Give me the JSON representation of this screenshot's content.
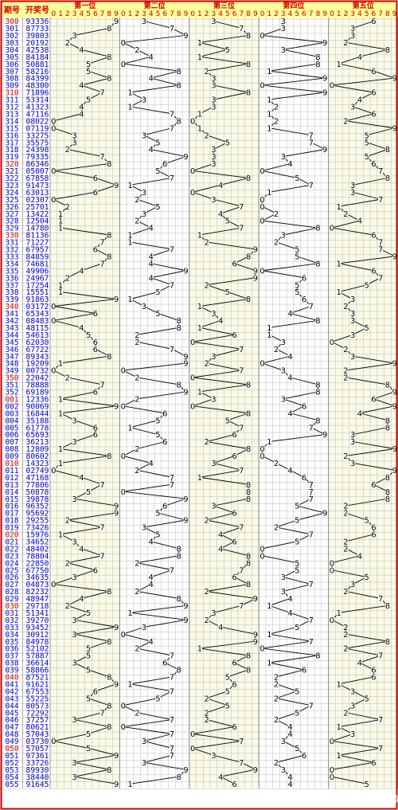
{
  "header": {
    "period_label": "期号",
    "draw_label": "开奖号"
  },
  "positions": [
    "第一位",
    "第二位",
    "第三位",
    "第四位",
    "第五位"
  ],
  "digits": [
    "0",
    "1",
    "2",
    "3",
    "4",
    "5",
    "6",
    "7",
    "8",
    "9"
  ],
  "watermark": "搜狐号@多歌",
  "colors": {
    "border": "#cc0000",
    "header_bg": "#ffff99",
    "period_red": "#cc0000",
    "period_blue": "#0000cc",
    "draw_blue": "#0000cc",
    "grid": "#bbbbbb",
    "zone_alt": "#fafae6",
    "line": "#000000"
  },
  "chart_data": {
    "type": "line",
    "title": "",
    "periods": [
      "300",
      "301",
      "302",
      "303",
      "304",
      "305",
      "306",
      "307",
      "308",
      "309",
      "310",
      "311",
      "312",
      "313",
      "314",
      "315",
      "316",
      "317",
      "318",
      "319",
      "320",
      "321",
      "322",
      "323",
      "324",
      "325",
      "326",
      "327",
      "328",
      "329",
      "330",
      "331",
      "332",
      "333",
      "334",
      "335",
      "336",
      "337",
      "338",
      "339",
      "340",
      "341",
      "342",
      "343",
      "344",
      "345",
      "346",
      "347",
      "348",
      "349",
      "350",
      "351",
      "352",
      "001",
      "002",
      "003",
      "004",
      "005",
      "006",
      "007",
      "008",
      "009",
      "010",
      "011",
      "012",
      "013",
      "014",
      "015",
      "016",
      "017",
      "018",
      "019",
      "020",
      "021",
      "022",
      "023",
      "024",
      "025",
      "026",
      "027",
      "028",
      "029",
      "030",
      "031",
      "032",
      "033",
      "034",
      "035",
      "036",
      "037",
      "038",
      "039",
      "040",
      "041",
      "042",
      "043",
      "044",
      "045",
      "046",
      "047",
      "048",
      "049",
      "050",
      "051",
      "052",
      "053",
      "054",
      "055"
    ],
    "red_periods": [
      "300",
      "310",
      "320",
      "330",
      "340",
      "350",
      "001",
      "010",
      "020",
      "030",
      "040",
      "050"
    ],
    "draws": [
      "93336",
      "87733",
      "39803",
      "20192",
      "42538",
      "84184",
      "50881",
      "58216",
      "84399",
      "48300",
      "71896",
      "53314",
      "41323",
      "47116",
      "08022",
      "07119",
      "33275",
      "35575",
      "24398",
      "79335",
      "86346",
      "05007",
      "67858",
      "91473",
      "63013",
      "02307",
      "25701",
      "13422",
      "12504",
      "14780",
      "81136",
      "71227",
      "67957",
      "84859",
      "74681",
      "49906",
      "24967",
      "17254",
      "15551",
      "91863",
      "03172",
      "65343",
      "08483",
      "48115",
      "54613",
      "62030",
      "67722",
      "89343",
      "19209",
      "00732",
      "22042",
      "78888",
      "69189",
      "12336",
      "90069",
      "16844",
      "35188",
      "61778",
      "65693",
      "36213",
      "12809",
      "80602",
      "14323",
      "02749",
      "47168",
      "77806",
      "50878",
      "39878",
      "96352",
      "95692",
      "29255",
      "73426",
      "15976",
      "34652",
      "48402",
      "78804",
      "22850",
      "67750",
      "34635",
      "04873",
      "82232",
      "48947",
      "29718",
      "51341",
      "39270",
      "93452",
      "30912",
      "84978",
      "52102",
      "57887",
      "36614",
      "58866",
      "87521",
      "91621",
      "67553",
      "55225",
      "80573",
      "72292",
      "37257",
      "80621",
      "57043",
      "03730",
      "57057",
      "97361",
      "33726",
      "89930",
      "38440",
      "91645"
    ],
    "series": [
      {
        "name": "第一位",
        "values": [
          9,
          8,
          3,
          2,
          4,
          8,
          5,
          5,
          8,
          4,
          7,
          5,
          4,
          4,
          0,
          0,
          3,
          3,
          2,
          7,
          8,
          0,
          6,
          9,
          6,
          0,
          2,
          1,
          1,
          1,
          8,
          7,
          6,
          8,
          7,
          4,
          2,
          1,
          1,
          9,
          0,
          6,
          0,
          4,
          5,
          6,
          6,
          8,
          1,
          0,
          2,
          7,
          6,
          1,
          9,
          1,
          3,
          6,
          6,
          3,
          1,
          8,
          1,
          0,
          4,
          7,
          5,
          3,
          9,
          9,
          2,
          7,
          1,
          3,
          4,
          7,
          2,
          6,
          3,
          0,
          8,
          4,
          2,
          5,
          3,
          9,
          3,
          8,
          5,
          5,
          3,
          5,
          8,
          9,
          6,
          5,
          8,
          7,
          3,
          8,
          5,
          0,
          5,
          9,
          3,
          8,
          3,
          9
        ]
      },
      {
        "name": "第二位",
        "values": [
          3,
          7,
          9,
          0,
          2,
          4,
          0,
          8,
          4,
          8,
          1,
          3,
          1,
          7,
          8,
          7,
          3,
          5,
          4,
          9,
          6,
          5,
          7,
          1,
          3,
          2,
          5,
          3,
          2,
          4,
          1,
          1,
          7,
          4,
          4,
          9,
          4,
          7,
          5,
          1,
          3,
          5,
          8,
          8,
          2,
          2,
          7,
          9,
          9,
          0,
          2,
          8,
          9,
          2,
          0,
          6,
          5,
          1,
          5,
          6,
          2,
          0,
          4,
          2,
          7,
          7,
          0,
          9,
          6,
          5,
          9,
          3,
          5,
          4,
          8,
          8,
          2,
          7,
          4,
          4,
          2,
          8,
          9,
          1,
          9,
          3,
          0,
          4,
          2,
          7,
          6,
          8,
          7,
          1,
          7,
          5,
          0,
          2,
          7,
          0,
          7,
          3,
          7,
          7,
          3,
          9,
          8,
          1
        ]
      },
      {
        "name": "第三位",
        "values": [
          3,
          7,
          8,
          1,
          5,
          1,
          8,
          2,
          3,
          3,
          8,
          3,
          3,
          1,
          0,
          1,
          2,
          5,
          3,
          3,
          3,
          0,
          8,
          4,
          0,
          3,
          7,
          4,
          5,
          7,
          1,
          2,
          9,
          8,
          6,
          9,
          9,
          2,
          5,
          8,
          1,
          3,
          4,
          1,
          6,
          0,
          7,
          3,
          2,
          7,
          0,
          8,
          1,
          3,
          0,
          8,
          5,
          7,
          6,
          2,
          8,
          6,
          3,
          7,
          1,
          8,
          8,
          8,
          3,
          6,
          2,
          7,
          4,
          6,
          4,
          8,
          8,
          7,
          6,
          8,
          2,
          9,
          7,
          3,
          2,
          4,
          9,
          9,
          1,
          8,
          6,
          8,
          5,
          6,
          5,
          2,
          5,
          2,
          2,
          6,
          0,
          7,
          0,
          3,
          7,
          9,
          4,
          6
        ]
      },
      {
        "name": "第四位",
        "values": [
          3,
          3,
          0,
          9,
          3,
          8,
          8,
          1,
          9,
          0,
          9,
          1,
          2,
          1,
          2,
          1,
          7,
          7,
          9,
          3,
          4,
          0,
          5,
          7,
          1,
          0,
          0,
          2,
          0,
          8,
          3,
          2,
          5,
          5,
          8,
          0,
          6,
          5,
          5,
          6,
          7,
          4,
          8,
          1,
          1,
          3,
          2,
          4,
          0,
          3,
          4,
          8,
          8,
          3,
          6,
          4,
          8,
          7,
          9,
          1,
          0,
          0,
          2,
          4,
          6,
          7,
          7,
          7,
          5,
          9,
          5,
          2,
          7,
          5,
          0,
          0,
          5,
          5,
          3,
          7,
          3,
          4,
          1,
          4,
          7,
          5,
          1,
          7,
          0,
          8,
          1,
          6,
          2,
          2,
          5,
          2,
          7,
          5,
          2,
          4,
          4,
          3,
          5,
          6,
          2,
          3,
          4,
          4
        ]
      },
      {
        "name": "第五位",
        "values": [
          6,
          3,
          3,
          2,
          8,
          4,
          1,
          6,
          9,
          0,
          6,
          4,
          3,
          6,
          2,
          9,
          5,
          5,
          8,
          5,
          6,
          7,
          8,
          3,
          3,
          7,
          1,
          2,
          4,
          0,
          6,
          7,
          7,
          9,
          1,
          6,
          7,
          5,
          1,
          3,
          2,
          3,
          3,
          5,
          3,
          0,
          2,
          3,
          9,
          2,
          2,
          8,
          9,
          6,
          9,
          4,
          8,
          8,
          3,
          3,
          9,
          2,
          3,
          9,
          8,
          6,
          8,
          8,
          2,
          2,
          5,
          6,
          6,
          2,
          2,
          4,
          0,
          0,
          5,
          3,
          2,
          7,
          8,
          1,
          0,
          2,
          2,
          8,
          2,
          7,
          4,
          6,
          6,
          1,
          3,
          5,
          3,
          2,
          7,
          1,
          3,
          0,
          7,
          1,
          6,
          0,
          0,
          5
        ]
      }
    ],
    "x_tick_labels": [
      "0",
      "1",
      "2",
      "3",
      "4",
      "5",
      "6",
      "7",
      "8",
      "9"
    ],
    "ylim": [
      0,
      9
    ]
  }
}
